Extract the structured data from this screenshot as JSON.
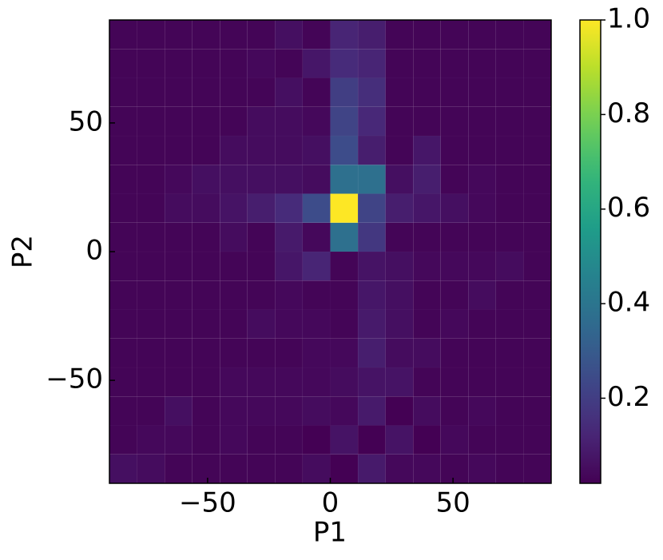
{
  "chart_data": {
    "type": "heatmap",
    "xlabel": "P1",
    "ylabel": "P2",
    "xlim": [
      -90,
      90
    ],
    "ylim": [
      -90,
      90
    ],
    "xbins": [
      -90,
      -78.75,
      -67.5,
      -56.25,
      -45,
      -33.75,
      -22.5,
      -11.25,
      0,
      11.25,
      22.5,
      33.75,
      45,
      56.25,
      67.5,
      78.75,
      90
    ],
    "ybins": [
      -90,
      -78.75,
      -67.5,
      -56.25,
      -45,
      -33.75,
      -22.5,
      -11.25,
      0,
      11.25,
      22.5,
      33.75,
      45,
      56.25,
      67.5,
      78.75,
      90
    ],
    "xticks": [
      {
        "value": -50,
        "label": "−50"
      },
      0,
      50
    ],
    "yticks": [
      {
        "value": -50,
        "label": "−50"
      },
      0,
      50
    ],
    "colormap": "viridis",
    "clim": [
      0.02,
      1
    ],
    "colorbar_ticks": [
      0.2,
      0.4,
      0.6,
      0.8,
      {
        "value": 1,
        "label": "1.0"
      }
    ],
    "z": [
      [
        0.06,
        0.05,
        0.03,
        0.03,
        0.03,
        0.03,
        0.03,
        0.05,
        0.02,
        0.09,
        0.04,
        0.04,
        0.03,
        0.04,
        0.03,
        0.03
      ],
      [
        0.03,
        0.04,
        0.04,
        0.03,
        0.04,
        0.03,
        0.03,
        0.02,
        0.07,
        0.02,
        0.07,
        0.02,
        0.04,
        0.03,
        0.03,
        0.03
      ],
      [
        0.03,
        0.03,
        0.06,
        0.03,
        0.04,
        0.04,
        0.04,
        0.05,
        0.04,
        0.09,
        0.02,
        0.05,
        0.03,
        0.04,
        0.03,
        0.03
      ],
      [
        0.03,
        0.03,
        0.03,
        0.03,
        0.04,
        0.04,
        0.04,
        0.04,
        0.05,
        0.07,
        0.07,
        0.03,
        0.03,
        0.03,
        0.03,
        0.03
      ],
      [
        0.03,
        0.03,
        0.03,
        0.03,
        0.03,
        0.03,
        0.03,
        0.04,
        0.04,
        0.1,
        0.05,
        0.05,
        0.03,
        0.03,
        0.03,
        0.03
      ],
      [
        0.03,
        0.03,
        0.03,
        0.03,
        0.03,
        0.05,
        0.04,
        0.04,
        0.03,
        0.09,
        0.06,
        0.03,
        0.04,
        0.03,
        0.03,
        0.03
      ],
      [
        0.03,
        0.03,
        0.03,
        0.03,
        0.03,
        0.03,
        0.04,
        0.03,
        0.03,
        0.08,
        0.06,
        0.03,
        0.03,
        0.05,
        0.03,
        0.03
      ],
      [
        0.03,
        0.03,
        0.03,
        0.03,
        0.03,
        0.03,
        0.08,
        0.12,
        0.03,
        0.07,
        0.06,
        0.04,
        0.04,
        0.04,
        0.05,
        0.03
      ],
      [
        0.03,
        0.03,
        0.03,
        0.03,
        0.05,
        0.03,
        0.09,
        0.04,
        0.38,
        0.18,
        0.03,
        0.03,
        0.03,
        0.03,
        0.03,
        0.03
      ],
      [
        0.03,
        0.03,
        0.05,
        0.05,
        0.07,
        0.1,
        0.14,
        0.25,
        1.0,
        0.22,
        0.1,
        0.08,
        0.06,
        0.04,
        0.03,
        0.03
      ],
      [
        0.03,
        0.03,
        0.04,
        0.06,
        0.06,
        0.06,
        0.06,
        0.05,
        0.38,
        0.38,
        0.06,
        0.1,
        0.03,
        0.04,
        0.03,
        0.03
      ],
      [
        0.03,
        0.03,
        0.03,
        0.03,
        0.05,
        0.05,
        0.05,
        0.06,
        0.25,
        0.1,
        0.03,
        0.08,
        0.03,
        0.03,
        0.03,
        0.03
      ],
      [
        0.03,
        0.03,
        0.03,
        0.03,
        0.03,
        0.05,
        0.05,
        0.04,
        0.22,
        0.13,
        0.03,
        0.03,
        0.03,
        0.03,
        0.03,
        0.03
      ],
      [
        0.03,
        0.03,
        0.03,
        0.03,
        0.03,
        0.03,
        0.06,
        0.03,
        0.2,
        0.15,
        0.03,
        0.03,
        0.03,
        0.03,
        0.03,
        0.03
      ],
      [
        0.03,
        0.03,
        0.03,
        0.03,
        0.03,
        0.04,
        0.03,
        0.08,
        0.14,
        0.12,
        0.03,
        0.03,
        0.03,
        0.03,
        0.03,
        0.03
      ],
      [
        0.03,
        0.03,
        0.03,
        0.03,
        0.03,
        0.03,
        0.06,
        0.03,
        0.12,
        0.1,
        0.03,
        0.03,
        0.03,
        0.03,
        0.03,
        0.03
      ]
    ]
  }
}
